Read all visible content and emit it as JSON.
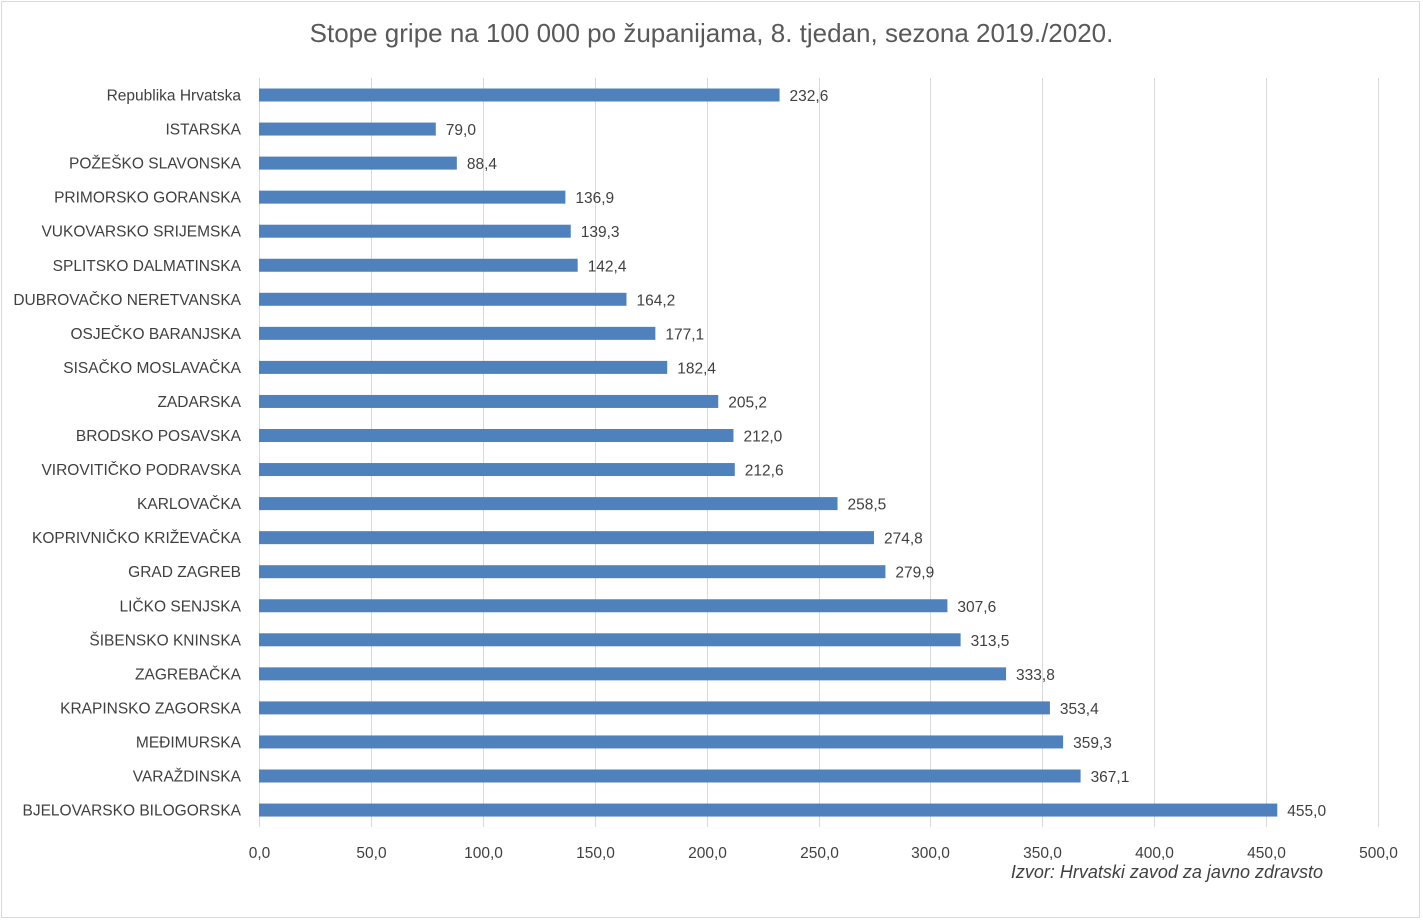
{
  "chart_data": {
    "type": "bar",
    "orientation": "horizontal",
    "title": "Stope gripe na 100 000 po županijama, 8. tjedan, sezona 2019./2020.",
    "source": "Izvor: Hrvatski zavod za javno zdravsto",
    "categories": [
      "Republika Hrvatska",
      "ISTARSKA",
      "POŽEŠKO SLAVONSKA",
      "PRIMORSKO GORANSKA",
      "VUKOVARSKO SRIJEMSKA",
      "SPLITSKO DALMATINSKA",
      "DUBROVAČKO NERETVANSKA",
      "OSJEČKO BARANJSKA",
      "SISAČKO MOSLAVAČKA",
      "ZADARSKA",
      "BRODSKO POSAVSKA",
      "VIROVITIČKO PODRAVSKA",
      "KARLOVAČKA",
      "KOPRIVNIČKO KRIŽEVAČKA",
      "GRAD ZAGREB",
      "LIČKO SENJSKA",
      "ŠIBENSKO KNINSKA",
      "ZAGREBAČKA",
      "KRAPINSKO ZAGORSKA",
      "MEĐIMURSKA",
      "VARAŽDINSKA",
      "BJELOVARSKO BILOGORSKA"
    ],
    "values": [
      232.6,
      79.0,
      88.4,
      136.9,
      139.3,
      142.4,
      164.2,
      177.1,
      182.4,
      205.2,
      212.0,
      212.6,
      258.5,
      274.8,
      279.9,
      307.6,
      313.5,
      333.8,
      353.4,
      359.3,
      367.1,
      455.0
    ],
    "value_labels": [
      "232,6",
      "79,0",
      "88,4",
      "136,9",
      "139,3",
      "142,4",
      "164,2",
      "177,1",
      "182,4",
      "205,2",
      "212,0",
      "212,6",
      "258,5",
      "274,8",
      "279,9",
      "307,6",
      "313,5",
      "333,8",
      "353,4",
      "359,3",
      "367,1",
      "455,0"
    ],
    "xlim": [
      0,
      500
    ],
    "xticks": [
      0,
      50,
      100,
      150,
      200,
      250,
      300,
      350,
      400,
      450,
      500
    ],
    "xtick_labels": [
      "0,0",
      "50,0",
      "100,0",
      "150,0",
      "200,0",
      "250,0",
      "300,0",
      "350,0",
      "400,0",
      "450,0",
      "500,0"
    ],
    "grid": true,
    "bar_color": "#4f81bd",
    "grid_color": "#d9d9d9"
  }
}
